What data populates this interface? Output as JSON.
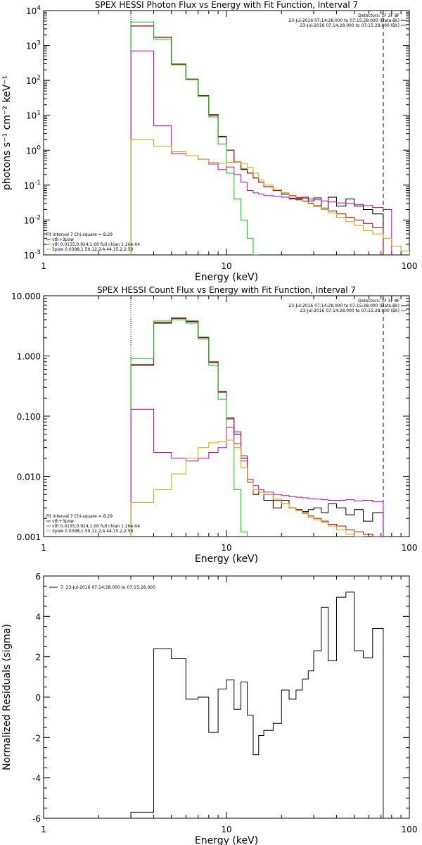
{
  "chart_data": [
    {
      "type": "line",
      "title": "SPEX HESSI Photon Flux vs Energy with Fit Function, Interval 7",
      "xlabel": "Energy (keV)",
      "ylabel": "photons s⁻¹ cm⁻² keV⁻¹",
      "xscale": "log",
      "yscale": "log",
      "xlim": [
        1,
        100
      ],
      "ylim": [
        0.001,
        10000
      ],
      "x_ticks": [
        {
          "value": 1,
          "label": "1"
        },
        {
          "value": 10,
          "label": "10"
        },
        {
          "value": 100,
          "label": "100"
        }
      ],
      "y_ticks": [
        {
          "value": 0.001,
          "base": "10",
          "exp": "-3"
        },
        {
          "value": 0.01,
          "base": "10",
          "exp": "-2"
        },
        {
          "value": 0.1,
          "base": "10",
          "exp": "-1"
        },
        {
          "value": 1,
          "base": "10",
          "exp": "0"
        },
        {
          "value": 10,
          "base": "10",
          "exp": "1"
        },
        {
          "value": 100,
          "base": "10",
          "exp": "2"
        },
        {
          "value": 1000,
          "base": "10",
          "exp": "3"
        },
        {
          "value": 10000,
          "base": "10",
          "exp": "4"
        }
      ],
      "legend_top": [
        {
          "text": "Detectors: 1F 3F 8F",
          "color": "#000000"
        },
        {
          "text": "23-Jul-2016 07:14:28.000 to 07:15:28.000 (Data-Bk)",
          "color": "#000000"
        },
        {
          "text": "23-Jul-2016 07:14:28.000 to 07:15:28.000 (Bk)",
          "color": "#cc00cc"
        }
      ],
      "legend_bottom": [
        {
          "text": "Fit Interval 7   Chi-square = 8.29",
          "color": "#000000"
        },
        {
          "text": "vth+3pow",
          "color": "#cc0000"
        },
        {
          "text": "vth 0.0155,0.924,1.00  full chian 1.26e-04",
          "color": "#00cc00"
        },
        {
          "text": "3pow 0.0398,1.50,12.2,4.44,15.2,2.50",
          "color": "#ccaa00"
        }
      ],
      "vlines": [
        {
          "x": 3.0,
          "style": "dotted"
        },
        {
          "x": 72,
          "style": "dashed"
        }
      ],
      "bin_edges": [
        3,
        4,
        5,
        6,
        7,
        8,
        9,
        10,
        11,
        12,
        13,
        14,
        15,
        16,
        18,
        20,
        22,
        24,
        26,
        28,
        30,
        33,
        36,
        40,
        45,
        50,
        56,
        63,
        72,
        80,
        90,
        100
      ],
      "series": [
        {
          "color": "#000000",
          "values": [
            3600,
            1700,
            290,
            108,
            36,
            10,
            2.4,
            1.0,
            0.45,
            0.28,
            0.22,
            0.16,
            0.12,
            0.09,
            0.07,
            0.055,
            0.042,
            0.038,
            0.045,
            0.035,
            0.043,
            0.02,
            0.045,
            0.025,
            0.04,
            0.025,
            0.02,
            0.015,
            null,
            null,
            null
          ]
        },
        {
          "color": "#cc0000",
          "values": [
            3650,
            1720,
            295,
            110,
            37,
            10.5,
            2.5,
            1.0,
            0.46,
            0.29,
            0.22,
            0.16,
            0.12,
            0.09,
            0.07,
            0.06,
            0.05,
            0.042,
            0.035,
            0.03,
            0.026,
            0.022,
            0.018,
            0.015,
            0.012,
            0.01,
            0.008,
            0.006,
            null,
            null,
            null
          ]
        },
        {
          "color": "#00cc00",
          "values": [
            4700,
            1500,
            280,
            105,
            35,
            9,
            1.5,
            0.22,
            0.04,
            0.01,
            0.003,
            0.001,
            null,
            null,
            null,
            null,
            null,
            null,
            null,
            null,
            null,
            null,
            null,
            null,
            null,
            null,
            null,
            null,
            null,
            null,
            null
          ]
        },
        {
          "color": "#cc00cc",
          "values": [
            700,
            5,
            0.8,
            0.7,
            0.55,
            0.4,
            0.28,
            0.33,
            0.2,
            0.12,
            0.07,
            0.06,
            0.055,
            0.05,
            0.048,
            0.045,
            0.04,
            0.044,
            0.042,
            0.04,
            0.038,
            0.035,
            0.033,
            0.031,
            0.03,
            0.028,
            0.026,
            0.023,
            0.02,
            null,
            null
          ]
        },
        {
          "color": "#ccaa00",
          "values": [
            2,
            1.3,
            0.9,
            0.7,
            0.55,
            0.45,
            0.42,
            0.45,
            0.45,
            0.42,
            0.32,
            0.22,
            0.14,
            0.1,
            0.075,
            0.06,
            0.045,
            0.04,
            0.034,
            0.029,
            0.024,
            0.02,
            0.016,
            0.012,
            0.009,
            0.007,
            0.005,
            0.004,
            0.003,
            0.0018,
            0.0013
          ]
        }
      ]
    },
    {
      "type": "line",
      "title": "SPEX HESSI Count Flux vs Energy with Fit Function, Interval 7",
      "xlabel": "Energy (keV)",
      "ylabel": "",
      "xscale": "log",
      "yscale": "log",
      "xlim": [
        1,
        100
      ],
      "ylim": [
        0.001,
        10
      ],
      "x_ticks": [
        {
          "value": 1,
          "label": "1"
        },
        {
          "value": 10,
          "label": "10"
        },
        {
          "value": 100,
          "label": "100"
        }
      ],
      "y_ticks": [
        {
          "value": 0.001,
          "label": "0.001"
        },
        {
          "value": 0.01,
          "label": "0.010"
        },
        {
          "value": 0.1,
          "label": "0.100"
        },
        {
          "value": 1,
          "label": "1.000"
        },
        {
          "value": 10,
          "label": "10.000"
        }
      ],
      "legend_top": [
        {
          "text": "Detectors: 1F 3F 8F",
          "color": "#000000"
        },
        {
          "text": "23-Jul-2016 07:14:28.000 to 07:15:28.000 (Data-Bk)",
          "color": "#000000"
        },
        {
          "text": "23-Jul-2016 07:14:28.000 to 07:15:28.000 (Bk)",
          "color": "#cc00cc"
        }
      ],
      "legend_bottom": [
        {
          "text": "Fit Interval 7   Chi-square = 8.29",
          "color": "#000000"
        },
        {
          "text": "vth+3pow",
          "color": "#cc0000"
        },
        {
          "text": "vth 0.0155,0.924,1.00  full chian 1.26e-04",
          "color": "#00cc00"
        },
        {
          "text": "3pow 0.0398,1.50,12.2,4.44,15.2,2.50",
          "color": "#ccaa00"
        }
      ],
      "vlines": [
        {
          "x": 3.0,
          "style": "dotted"
        },
        {
          "x": 72,
          "style": "dashed"
        }
      ],
      "bin_edges": [
        3,
        4,
        5,
        6,
        7,
        8,
        9,
        10,
        11,
        12,
        13,
        14,
        15,
        16,
        18,
        20,
        22,
        24,
        26,
        28,
        30,
        33,
        36,
        40,
        45,
        50,
        56,
        63,
        72
      ],
      "series": [
        {
          "color": "#000000",
          "values": [
            0.7,
            3.5,
            4.2,
            3.7,
            2.0,
            0.78,
            0.25,
            0.09,
            0.05,
            0.02,
            0.008,
            0.005,
            0.006,
            0.004,
            0.003,
            0.004,
            0.003,
            0.0028,
            0.0026,
            0.0028,
            0.003,
            0.0025,
            0.0035,
            0.003,
            0.0023,
            0.0028,
            0.0018,
            0.0025
          ]
        },
        {
          "color": "#cc0000",
          "values": [
            0.72,
            3.6,
            4.3,
            3.8,
            2.05,
            0.8,
            0.26,
            0.095,
            0.055,
            0.022,
            0.008,
            0.005,
            0.006,
            0.005,
            0.004,
            0.0035,
            0.003,
            0.0028,
            0.0025,
            0.0022,
            0.002,
            0.0018,
            0.0016,
            0.0015,
            0.0013,
            0.0012,
            0.0011,
            0.001
          ]
        },
        {
          "color": "#00cc00",
          "values": [
            0.9,
            3.8,
            4.0,
            3.5,
            1.9,
            0.7,
            0.19,
            0.04,
            0.006,
            0.0012,
            null,
            null,
            null,
            null,
            null,
            null,
            null,
            null,
            null,
            null,
            null,
            null,
            null,
            null,
            null,
            null,
            null,
            null
          ]
        },
        {
          "color": "#cc00cc",
          "values": [
            0.13,
            0.025,
            0.02,
            0.018,
            0.02,
            0.025,
            0.03,
            0.065,
            0.035,
            0.018,
            0.009,
            0.007,
            0.006,
            0.0055,
            0.005,
            0.0048,
            0.0046,
            0.0045,
            0.0044,
            0.0043,
            0.0042,
            0.0041,
            0.004,
            0.004,
            0.0041,
            0.0039,
            0.004,
            0.0038
          ]
        },
        {
          "color": "#ccaa00",
          "values": [
            0.0037,
            0.006,
            0.011,
            0.02,
            0.03,
            0.036,
            0.038,
            0.04,
            0.03,
            0.014,
            0.008,
            0.006,
            0.0055,
            0.005,
            0.0042,
            0.0035,
            0.003,
            0.0027,
            0.0024,
            0.0021,
            0.0019,
            0.0017,
            0.0015,
            0.0013,
            0.0011,
            0.001,
            null,
            null
          ]
        }
      ]
    },
    {
      "type": "line",
      "title": "",
      "xlabel": "Energy (keV)",
      "ylabel": "Normalized Residuals (sigma)",
      "xscale": "log",
      "yscale": "linear",
      "xlim": [
        1,
        100
      ],
      "ylim": [
        -6,
        6
      ],
      "x_ticks": [
        {
          "value": 1,
          "label": "1"
        },
        {
          "value": 10,
          "label": "10"
        },
        {
          "value": 100,
          "label": "100"
        }
      ],
      "y_ticks": [
        {
          "value": -6,
          "label": "-6"
        },
        {
          "value": -4,
          "label": "-4"
        },
        {
          "value": -2,
          "label": "-2"
        },
        {
          "value": 0,
          "label": "0"
        },
        {
          "value": 2,
          "label": "2"
        },
        {
          "value": 4,
          "label": "4"
        },
        {
          "value": 6,
          "label": "6"
        }
      ],
      "legend_top_left": [
        {
          "text": "7. 23-Jul-2016 07:14:28.000 to 07:15:28.000",
          "color": "#000000"
        }
      ],
      "bin_edges": [
        3,
        4,
        5,
        6,
        7,
        8,
        9,
        10,
        11,
        12,
        13,
        14,
        15,
        16,
        18,
        20,
        22,
        24,
        26,
        28,
        30,
        33,
        36,
        40,
        45,
        50,
        56,
        63,
        72
      ],
      "series": [
        {
          "color": "#000000",
          "values": [
            -5.7,
            2.4,
            1.9,
            -0.1,
            0,
            -1.75,
            0.4,
            0.85,
            -0.6,
            0.75,
            -0.9,
            -2.85,
            -1.9,
            -1.65,
            -1.3,
            0.35,
            -0.1,
            0.35,
            0.9,
            1.3,
            2.3,
            4.45,
            1.8,
            4.95,
            5.2,
            2.3,
            1.95,
            3.4
          ]
        }
      ]
    }
  ]
}
